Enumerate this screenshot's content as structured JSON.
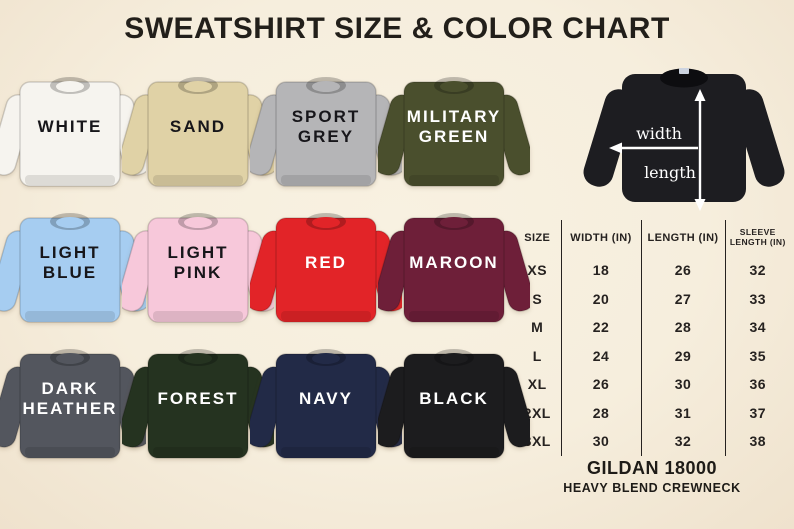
{
  "title": "SWEATSHIRT SIZE & COLOR CHART",
  "palette": {
    "background": "#f6eedd",
    "ink": "#221f1a",
    "table_line": "#262220"
  },
  "swatches": [
    {
      "name": "white",
      "label_lines": [
        "WHITE"
      ],
      "fill": "#f6f4ef",
      "label_color": "#17161a"
    },
    {
      "name": "sand",
      "label_lines": [
        "SAND"
      ],
      "fill": "#e0d2a6",
      "label_color": "#17161a"
    },
    {
      "name": "sport-grey",
      "label_lines": [
        "SPORT",
        "GREY"
      ],
      "fill": "#b5b5b7",
      "label_color": "#17161a"
    },
    {
      "name": "military-green",
      "label_lines": [
        "MILITARY",
        "GREEN"
      ],
      "fill": "#4a4f2d",
      "label_color": "#ffffff"
    },
    {
      "name": "light-blue",
      "label_lines": [
        "LIGHT",
        "BLUE"
      ],
      "fill": "#a6cdf1",
      "label_color": "#17161a"
    },
    {
      "name": "light-pink",
      "label_lines": [
        "LIGHT",
        "PINK"
      ],
      "fill": "#f7c8da",
      "label_color": "#17161a"
    },
    {
      "name": "red",
      "label_lines": [
        "RED"
      ],
      "fill": "#e22428",
      "label_color": "#ffffff"
    },
    {
      "name": "maroon",
      "label_lines": [
        "MAROON"
      ],
      "fill": "#6e1f39",
      "label_color": "#ffffff"
    },
    {
      "name": "dark-heather",
      "label_lines": [
        "DARK",
        "HEATHER"
      ],
      "fill": "#53565e",
      "label_color": "#ffffff"
    },
    {
      "name": "forest",
      "label_lines": [
        "FOREST"
      ],
      "fill": "#253320",
      "label_color": "#ffffff"
    },
    {
      "name": "navy",
      "label_lines": [
        "NAVY"
      ],
      "fill": "#222a47",
      "label_color": "#ffffff"
    },
    {
      "name": "black",
      "label_lines": [
        "BLACK"
      ],
      "fill": "#1c1c1e",
      "label_color": "#ffffff"
    }
  ],
  "diagram": {
    "shirt_color": "#1d1d21",
    "arrow_color": "#ffffff",
    "width_label": "width",
    "length_label": "length"
  },
  "size_table": {
    "headers_display": [
      [
        "SIZE"
      ],
      [
        "WIDTH (IN)"
      ],
      [
        "LENGTH (IN)"
      ],
      [
        "SLEEVE",
        "LENGTH (IN)"
      ]
    ],
    "rows": [
      [
        "XS",
        "18",
        "26",
        "32"
      ],
      [
        "S",
        "20",
        "27",
        "33"
      ],
      [
        "M",
        "22",
        "28",
        "34"
      ],
      [
        "L",
        "24",
        "29",
        "35"
      ],
      [
        "XL",
        "26",
        "30",
        "36"
      ],
      [
        "2XL",
        "28",
        "31",
        "37"
      ],
      [
        "3XL",
        "30",
        "32",
        "38"
      ]
    ]
  },
  "footer": {
    "line1": "GILDAN 18000",
    "line2": "HEAVY BLEND CREWNECK"
  },
  "chart_data": {
    "type": "table",
    "title": "SWEATSHIRT SIZE & COLOR CHART",
    "columns": [
      "SIZE",
      "WIDTH (IN)",
      "LENGTH (IN)",
      "SLEEVE LENGTH (IN)"
    ],
    "rows": [
      [
        "XS",
        18,
        26,
        32
      ],
      [
        "S",
        20,
        27,
        33
      ],
      [
        "M",
        22,
        28,
        34
      ],
      [
        "L",
        24,
        29,
        35
      ],
      [
        "XL",
        26,
        30,
        36
      ],
      [
        "2XL",
        28,
        31,
        37
      ],
      [
        "3XL",
        30,
        32,
        38
      ]
    ],
    "color_options": [
      "WHITE",
      "SAND",
      "SPORT GREY",
      "MILITARY GREEN",
      "LIGHT BLUE",
      "LIGHT PINK",
      "RED",
      "MAROON",
      "DARK HEATHER",
      "FOREST",
      "NAVY",
      "BLACK"
    ],
    "product": "GILDAN 18000 HEAVY BLEND CREWNECK",
    "measure_labels": [
      "width",
      "length"
    ]
  }
}
